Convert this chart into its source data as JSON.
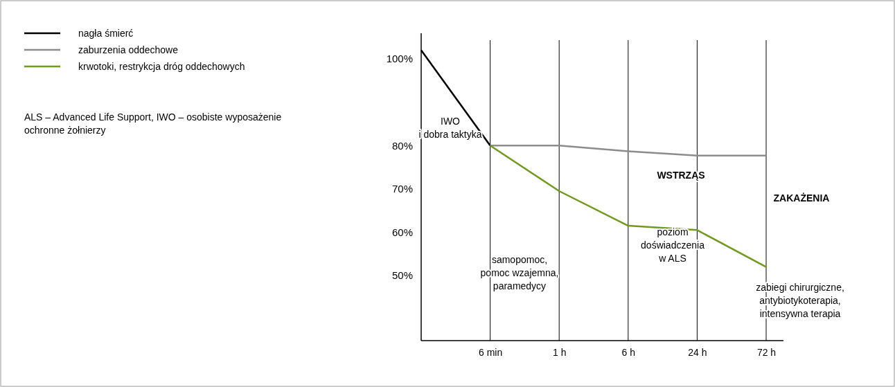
{
  "chart_data": {
    "type": "line",
    "categories": [
      null,
      "6 min",
      "1 h",
      "6 h",
      "24 h",
      "72 h"
    ],
    "series": [
      {
        "name": "nagła śmierć",
        "color": "#000000",
        "values": [
          102,
          80,
          null,
          null,
          null,
          null
        ]
      },
      {
        "name": "zaburzenia oddechowe",
        "color": "#8c8c8c",
        "values": [
          null,
          80,
          80,
          78.7,
          77.7,
          77.7
        ]
      },
      {
        "name": "krwotoki, restrykcja dróg oddechowych",
        "color": "#6f9a1c",
        "values": [
          null,
          80,
          69.5,
          61.5,
          60.5,
          52
        ]
      }
    ],
    "ylim": [
      35,
      104
    ],
    "yticks": [
      {
        "value": 100,
        "label": "100%"
      },
      {
        "value": 80,
        "label": "80%"
      },
      {
        "value": 70,
        "label": "70%"
      },
      {
        "value": 60,
        "label": "60%"
      },
      {
        "value": 50,
        "label": "50%"
      }
    ],
    "grid": "x",
    "legend": "top left",
    "marker": "none",
    "line_style": "solid",
    "annotations": [
      "IWO\ni dobra taktyka",
      "samopomoc,\npomoc wzajemna,\nparamedycy",
      "WSTRZĄS",
      "poziom\ndoświadczenia\nw ALS",
      "ZAKAŻENIA",
      "zabiegi chirurgiczne,\nantybiotykoterapia,\nintensywna terapia",
      "ALS – Advanced Life Support, IWO – osobiste wyposażenie\nochronne żołnierzy"
    ]
  }
}
